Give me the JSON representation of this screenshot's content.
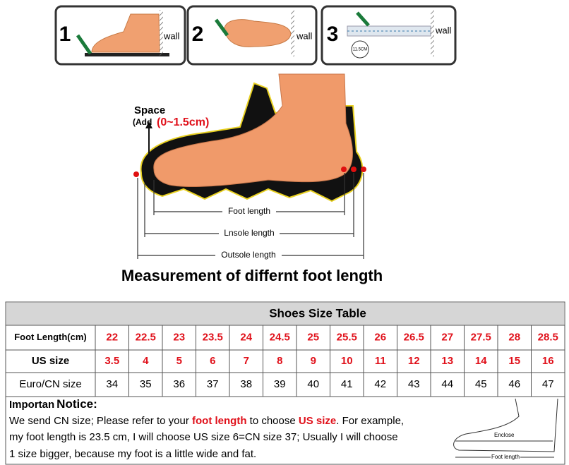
{
  "steps": [
    {
      "number": "1",
      "label": "wall"
    },
    {
      "number": "2",
      "label": "wall"
    },
    {
      "number": "3",
      "label": "wall",
      "measure": "11.5CM"
    }
  ],
  "diagram": {
    "space": "Space",
    "add": "(Add",
    "range": "(0~1.5cm)",
    "foot_length": "Foot length",
    "insole_length": "Lnsole length",
    "outsole_length": "Outsole length",
    "caption": "Measurement of differnt foot length"
  },
  "table": {
    "title": "Shoes Size Table",
    "rows": [
      {
        "label": "Foot Length(cm)",
        "values": [
          22,
          22.5,
          23,
          23.5,
          24,
          24.5,
          25,
          25.5,
          26,
          26.5,
          27,
          27.5,
          28,
          28.5
        ]
      },
      {
        "label": "US size",
        "values": [
          3.5,
          4,
          5,
          6,
          7,
          8,
          9,
          10,
          11,
          12,
          13,
          14,
          15,
          16
        ]
      },
      {
        "label": "Euro/CN size",
        "values": [
          34,
          35,
          36,
          37,
          38,
          39,
          40,
          41,
          42,
          43,
          44,
          45,
          46,
          47
        ]
      }
    ]
  },
  "notice": {
    "prefix": "Importan",
    "title": "Notice:",
    "lines": [
      [
        "We send CN size; Please refer to your ",
        "foot length",
        " to choose ",
        "US size",
        ". For example,"
      ],
      [
        "my foot length is 23.5 cm, I will choose US size 6=CN size 37; Usually I will choose"
      ],
      [
        "1 size bigger, because my foot is a little wide and fat."
      ]
    ]
  },
  "figure": {
    "enclose": "Enclose",
    "foot_length": "Foot length"
  }
}
